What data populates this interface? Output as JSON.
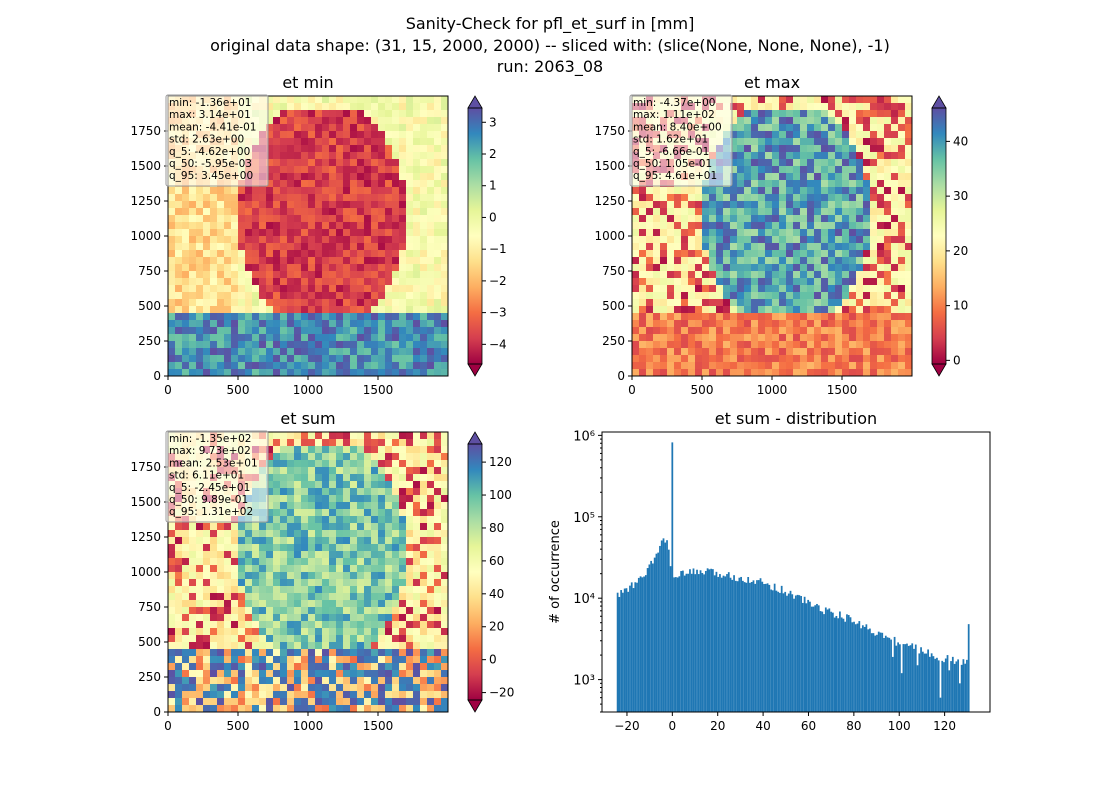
{
  "figure": {
    "title_lines": [
      "Sanity-Check for pfl_et_surf in [mm]",
      "original data shape: (31, 15, 2000, 2000) -- sliced with: (slice(None, None, None), -1)",
      "run: 2063_08"
    ]
  },
  "chart_data": [
    {
      "type": "heatmap",
      "title": "et min",
      "xlim": [
        0,
        2000
      ],
      "ylim": [
        0,
        2000
      ],
      "xticks": [
        "0",
        "500",
        "1000",
        "1500"
      ],
      "yticks": [
        "0",
        "250",
        "500",
        "750",
        "1000",
        "1250",
        "1500",
        "1750"
      ],
      "colormap": "Spectral",
      "colorbar": {
        "ticks": [
          "−4",
          "−3",
          "−2",
          "−1",
          "0",
          "1",
          "2",
          "3"
        ],
        "range": [
          -4.62,
          3.45
        ],
        "tick_values": [
          -4,
          -3,
          -2,
          -1,
          0,
          1,
          2,
          3
        ]
      },
      "stats": [
        "min: -1.36e+01",
        "max: 3.14e+01",
        "mean: -4.41e-01",
        "std: 2.63e+00",
        "q_5: -4.62e+00",
        "q_50: -5.95e-03",
        "q_95: 3.45e+00"
      ]
    },
    {
      "type": "heatmap",
      "title": "et max",
      "xlim": [
        0,
        2000
      ],
      "ylim": [
        0,
        2000
      ],
      "xticks": [
        "0",
        "500",
        "1000",
        "1500"
      ],
      "yticks": [
        "0",
        "250",
        "500",
        "750",
        "1000",
        "1250",
        "1500",
        "1750"
      ],
      "colormap": "Spectral",
      "colorbar": {
        "ticks": [
          "0",
          "10",
          "20",
          "30",
          "40"
        ],
        "range": [
          -0.666,
          46.1
        ],
        "tick_values": [
          0,
          10,
          20,
          30,
          40
        ]
      },
      "stats": [
        "min: -4.37e+00",
        "max: 1.11e+02",
        "mean: 8.40e+00",
        "std: 1.62e+01",
        "q_5: -6.66e-01",
        "q_50: 1.05e-01",
        "q_95: 4.61e+01"
      ]
    },
    {
      "type": "heatmap",
      "title": "et sum",
      "xlim": [
        0,
        2000
      ],
      "ylim": [
        0,
        2000
      ],
      "xticks": [
        "0",
        "500",
        "1000",
        "1500"
      ],
      "yticks": [
        "0",
        "250",
        "500",
        "750",
        "1000",
        "1250",
        "1500",
        "1750"
      ],
      "colormap": "Spectral",
      "colorbar": {
        "ticks": [
          "−20",
          "0",
          "20",
          "40",
          "60",
          "80",
          "100",
          "120"
        ],
        "range": [
          -24.5,
          131
        ],
        "tick_values": [
          -20,
          0,
          20,
          40,
          60,
          80,
          100,
          120
        ]
      },
      "stats": [
        "min: -1.35e+02",
        "max: 9.73e+02",
        "mean: 2.53e+01",
        "std: 6.11e+01",
        "q_5: -2.45e+01",
        "q_50: 9.89e-01",
        "q_95: 1.31e+02"
      ]
    },
    {
      "type": "bar",
      "title": "et sum - distribution",
      "ylabel": "# of occurrence",
      "xlabel": "",
      "yscale": "log",
      "xlim": [
        -31,
        140
      ],
      "ylim": [
        400,
        1100000
      ],
      "xticks": [
        "−20",
        "0",
        "20",
        "40",
        "60",
        "80",
        "100",
        "120"
      ],
      "xtick_values": [
        -20,
        0,
        20,
        40,
        60,
        80,
        100,
        120
      ],
      "yticks": [
        "10³",
        "10⁴",
        "10⁵",
        "10⁶"
      ],
      "ytick_values": [
        1000,
        10000,
        100000,
        1000000
      ],
      "color": "#1f77b4",
      "bins": {
        "x_start": -24.5,
        "x_end": 131,
        "count": 200,
        "anchors": [
          [
            -24.5,
            10500
          ],
          [
            -22,
            12000
          ],
          [
            -18,
            14000
          ],
          [
            -14,
            17000
          ],
          [
            -10,
            24000
          ],
          [
            -7,
            33000
          ],
          [
            -5,
            48000
          ],
          [
            -3.5,
            58000
          ],
          [
            -2,
            43000
          ],
          [
            -1,
            30000
          ],
          [
            1,
            16000
          ],
          [
            3,
            19000
          ],
          [
            8,
            21000
          ],
          [
            15,
            21000
          ],
          [
            25,
            19000
          ],
          [
            35,
            17000
          ],
          [
            45,
            14000
          ],
          [
            55,
            10500
          ],
          [
            65,
            7500
          ],
          [
            75,
            6000
          ],
          [
            85,
            4500
          ],
          [
            95,
            3200
          ],
          [
            105,
            2600
          ],
          [
            115,
            2000
          ],
          [
            125,
            1700
          ],
          [
            131,
            1600
          ]
        ],
        "spikes": [
          [
            -0.3,
            820000
          ],
          [
            131,
            4800
          ],
          [
            118,
            600
          ],
          [
            127,
            900
          ],
          [
            101,
            1200
          ],
          [
            108,
            1500
          ],
          [
            122,
            1300
          ],
          [
            97,
            1900
          ]
        ]
      }
    }
  ]
}
